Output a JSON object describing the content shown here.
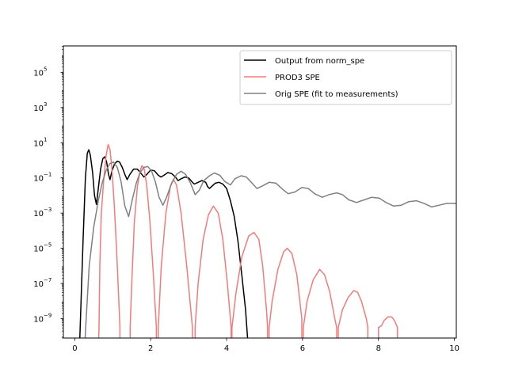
{
  "chart_data": {
    "type": "line",
    "title": "",
    "xlabel": "",
    "ylabel": "",
    "xlim": [
      -0.3,
      10.05
    ],
    "ylim_log10": [
      -10.1,
      6.5
    ],
    "y_scale": "log",
    "grid": false,
    "legend_position": "top-right",
    "x_ticks": [
      {
        "value": 0,
        "label": "0"
      },
      {
        "value": 2,
        "label": "2"
      },
      {
        "value": 4,
        "label": "4"
      },
      {
        "value": 6,
        "label": "6"
      },
      {
        "value": 8,
        "label": "8"
      },
      {
        "value": 10,
        "label": "10"
      }
    ],
    "y_ticks": [
      {
        "exp": -9,
        "base": "10",
        "power": "−9"
      },
      {
        "exp": -7,
        "base": "10",
        "power": "−7"
      },
      {
        "exp": -5,
        "base": "10",
        "power": "−5"
      },
      {
        "exp": -3,
        "base": "10",
        "power": "−3"
      },
      {
        "exp": -1,
        "base": "10",
        "power": "−1"
      },
      {
        "exp": 1,
        "base": "10",
        "power": "1"
      },
      {
        "exp": 3,
        "base": "10",
        "power": "3"
      },
      {
        "exp": 5,
        "base": "10",
        "power": "5"
      }
    ],
    "series": [
      {
        "name": "Output from norm_spe",
        "color": "#000000",
        "log10_points": [
          [
            0.12,
            -11
          ],
          [
            0.22,
            -4.5
          ],
          [
            0.28,
            -1
          ],
          [
            0.33,
            0.4
          ],
          [
            0.37,
            0.6
          ],
          [
            0.41,
            0.3
          ],
          [
            0.47,
            -0.7
          ],
          [
            0.52,
            -2
          ],
          [
            0.57,
            -2.5
          ],
          [
            0.62,
            -1.6
          ],
          [
            0.68,
            -0.5
          ],
          [
            0.74,
            0.1
          ],
          [
            0.79,
            0.2
          ],
          [
            0.84,
            -0.1
          ],
          [
            0.89,
            -0.8
          ],
          [
            0.93,
            -1.1
          ],
          [
            0.98,
            -0.6
          ],
          [
            1.05,
            -0.2
          ],
          [
            1.12,
            -0.05
          ],
          [
            1.18,
            -0.1
          ],
          [
            1.25,
            -0.4
          ],
          [
            1.32,
            -0.8
          ],
          [
            1.38,
            -1.1
          ],
          [
            1.45,
            -0.8
          ],
          [
            1.55,
            -0.5
          ],
          [
            1.65,
            -0.5
          ],
          [
            1.75,
            -0.75
          ],
          [
            1.82,
            -0.95
          ],
          [
            1.9,
            -0.8
          ],
          [
            2.0,
            -0.55
          ],
          [
            2.1,
            -0.6
          ],
          [
            2.2,
            -0.85
          ],
          [
            2.27,
            -0.95
          ],
          [
            2.35,
            -0.85
          ],
          [
            2.45,
            -0.7
          ],
          [
            2.55,
            -0.75
          ],
          [
            2.65,
            -0.95
          ],
          [
            2.72,
            -1.15
          ],
          [
            2.8,
            -1.05
          ],
          [
            2.9,
            -0.95
          ],
          [
            3.0,
            -1.0
          ],
          [
            3.1,
            -1.25
          ],
          [
            3.15,
            -1.35
          ],
          [
            3.25,
            -1.25
          ],
          [
            3.35,
            -1.15
          ],
          [
            3.45,
            -1.25
          ],
          [
            3.5,
            -1.5
          ],
          [
            3.55,
            -1.6
          ],
          [
            3.6,
            -1.5
          ],
          [
            3.7,
            -1.3
          ],
          [
            3.8,
            -1.25
          ],
          [
            3.9,
            -1.35
          ],
          [
            4.0,
            -1.6
          ],
          [
            4.1,
            -2.3
          ],
          [
            4.2,
            -3.2
          ],
          [
            4.3,
            -4.6
          ],
          [
            4.4,
            -6.5
          ],
          [
            4.5,
            -8.5
          ],
          [
            4.58,
            -11
          ]
        ]
      },
      {
        "name": "PROD3 SPE",
        "color": "#f57a7a",
        "log10_points": [
          [
            0.62,
            -11
          ],
          [
            0.64,
            -9.5
          ],
          [
            0.66,
            -6
          ],
          [
            0.7,
            -3
          ],
          [
            0.76,
            -1.2
          ],
          [
            0.82,
            0.2
          ],
          [
            0.88,
            0.9
          ],
          [
            0.93,
            0.6
          ],
          [
            0.98,
            -0.5
          ],
          [
            1.04,
            -2.5
          ],
          [
            1.1,
            -5
          ],
          [
            1.16,
            -8
          ],
          [
            1.19,
            -9.5
          ],
          [
            1.19,
            -11
          ],
          [
            1.46,
            -11
          ],
          [
            1.46,
            -9.5
          ],
          [
            1.5,
            -7
          ],
          [
            1.57,
            -3.5
          ],
          [
            1.65,
            -1.5
          ],
          [
            1.72,
            -0.6
          ],
          [
            1.77,
            -0.3
          ],
          [
            1.83,
            -0.5
          ],
          [
            1.9,
            -1.5
          ],
          [
            1.98,
            -3.5
          ],
          [
            2.07,
            -6.5
          ],
          [
            2.15,
            -9.5
          ],
          [
            2.15,
            -11
          ],
          [
            2.2,
            -11
          ],
          [
            2.2,
            -9.5
          ],
          [
            2.28,
            -6
          ],
          [
            2.4,
            -3
          ],
          [
            2.52,
            -1.5
          ],
          [
            2.6,
            -1.1
          ],
          [
            2.68,
            -1.4
          ],
          [
            2.8,
            -3
          ],
          [
            2.95,
            -6
          ],
          [
            3.1,
            -9.5
          ],
          [
            3.1,
            -11
          ],
          [
            3.17,
            -11
          ],
          [
            3.17,
            -9.5
          ],
          [
            3.25,
            -7
          ],
          [
            3.38,
            -4.5
          ],
          [
            3.52,
            -3.1
          ],
          [
            3.65,
            -2.6
          ],
          [
            3.78,
            -3
          ],
          [
            3.9,
            -4.5
          ],
          [
            4.02,
            -7
          ],
          [
            4.12,
            -9.5
          ],
          [
            4.12,
            -11
          ],
          [
            4.14,
            -11
          ],
          [
            4.14,
            -9.5
          ],
          [
            4.25,
            -7.5
          ],
          [
            4.4,
            -5.5
          ],
          [
            4.58,
            -4.3
          ],
          [
            4.72,
            -4.1
          ],
          [
            4.85,
            -4.5
          ],
          [
            4.95,
            -6
          ],
          [
            5.05,
            -8.5
          ],
          [
            5.08,
            -9.5
          ],
          [
            5.08,
            -11
          ],
          [
            5.12,
            -11
          ],
          [
            5.12,
            -9.5
          ],
          [
            5.2,
            -8
          ],
          [
            5.35,
            -6.2
          ],
          [
            5.5,
            -5.2
          ],
          [
            5.6,
            -5
          ],
          [
            5.72,
            -5.3
          ],
          [
            5.85,
            -6.5
          ],
          [
            5.98,
            -9
          ],
          [
            5.98,
            -11
          ],
          [
            6.02,
            -11
          ],
          [
            6.02,
            -9.5
          ],
          [
            6.12,
            -8
          ],
          [
            6.28,
            -6.8
          ],
          [
            6.45,
            -6.2
          ],
          [
            6.58,
            -6.5
          ],
          [
            6.72,
            -7.5
          ],
          [
            6.85,
            -9
          ],
          [
            6.9,
            -9.5
          ],
          [
            6.9,
            -11
          ],
          [
            6.94,
            -11
          ],
          [
            6.94,
            -9.5
          ],
          [
            7.05,
            -8.5
          ],
          [
            7.2,
            -7.8
          ],
          [
            7.35,
            -7.4
          ],
          [
            7.45,
            -7.5
          ],
          [
            7.55,
            -8
          ],
          [
            7.68,
            -9
          ],
          [
            7.72,
            -9.5
          ],
          [
            7.72,
            -11
          ],
          [
            8.0,
            -11
          ],
          [
            8.0,
            -9.5
          ],
          [
            8.08,
            -9.4
          ],
          [
            8.15,
            -9.1
          ],
          [
            8.25,
            -8.9
          ],
          [
            8.35,
            -8.9
          ],
          [
            8.42,
            -9.1
          ],
          [
            8.48,
            -9.4
          ],
          [
            8.5,
            -9.5
          ],
          [
            8.5,
            -11
          ]
        ]
      },
      {
        "name": "Orig SPE (fit to measurements)",
        "color": "#808080",
        "log10_points": [
          [
            0.25,
            -11
          ],
          [
            0.3,
            -9
          ],
          [
            0.38,
            -6
          ],
          [
            0.5,
            -3.8
          ],
          [
            0.62,
            -2.3
          ],
          [
            0.72,
            -1.3
          ],
          [
            0.82,
            -0.6
          ],
          [
            0.92,
            -0.2
          ],
          [
            1.02,
            -0.1
          ],
          [
            1.12,
            -0.4
          ],
          [
            1.22,
            -1.2
          ],
          [
            1.32,
            -2.6
          ],
          [
            1.42,
            -3.2
          ],
          [
            1.52,
            -2.2
          ],
          [
            1.62,
            -1.3
          ],
          [
            1.72,
            -0.7
          ],
          [
            1.82,
            -0.4
          ],
          [
            1.92,
            -0.35
          ],
          [
            2.02,
            -0.6
          ],
          [
            2.12,
            -1.2
          ],
          [
            2.22,
            -2.1
          ],
          [
            2.32,
            -2.55
          ],
          [
            2.42,
            -2.1
          ],
          [
            2.55,
            -1.3
          ],
          [
            2.68,
            -0.8
          ],
          [
            2.8,
            -0.62
          ],
          [
            2.92,
            -0.8
          ],
          [
            3.05,
            -1.3
          ],
          [
            3.17,
            -1.95
          ],
          [
            3.28,
            -1.7
          ],
          [
            3.4,
            -1.15
          ],
          [
            3.55,
            -0.88
          ],
          [
            3.68,
            -0.72
          ],
          [
            3.82,
            -0.85
          ],
          [
            3.95,
            -1.2
          ],
          [
            4.1,
            -1.4
          ],
          [
            4.22,
            -1.05
          ],
          [
            4.38,
            -0.88
          ],
          [
            4.52,
            -0.95
          ],
          [
            4.65,
            -1.25
          ],
          [
            4.8,
            -1.6
          ],
          [
            4.95,
            -1.45
          ],
          [
            5.12,
            -1.25
          ],
          [
            5.3,
            -1.3
          ],
          [
            5.45,
            -1.6
          ],
          [
            5.62,
            -1.9
          ],
          [
            5.8,
            -1.8
          ],
          [
            5.98,
            -1.55
          ],
          [
            6.15,
            -1.6
          ],
          [
            6.32,
            -1.9
          ],
          [
            6.52,
            -2.1
          ],
          [
            6.7,
            -1.95
          ],
          [
            6.9,
            -1.85
          ],
          [
            7.05,
            -1.95
          ],
          [
            7.22,
            -2.25
          ],
          [
            7.42,
            -2.4
          ],
          [
            7.62,
            -2.25
          ],
          [
            7.82,
            -2.1
          ],
          [
            8.02,
            -2.15
          ],
          [
            8.2,
            -2.4
          ],
          [
            8.4,
            -2.6
          ],
          [
            8.6,
            -2.55
          ],
          [
            8.8,
            -2.35
          ],
          [
            9.0,
            -2.3
          ],
          [
            9.2,
            -2.45
          ],
          [
            9.4,
            -2.65
          ],
          [
            9.6,
            -2.55
          ],
          [
            9.8,
            -2.45
          ],
          [
            10.05,
            -2.45
          ]
        ]
      }
    ]
  }
}
